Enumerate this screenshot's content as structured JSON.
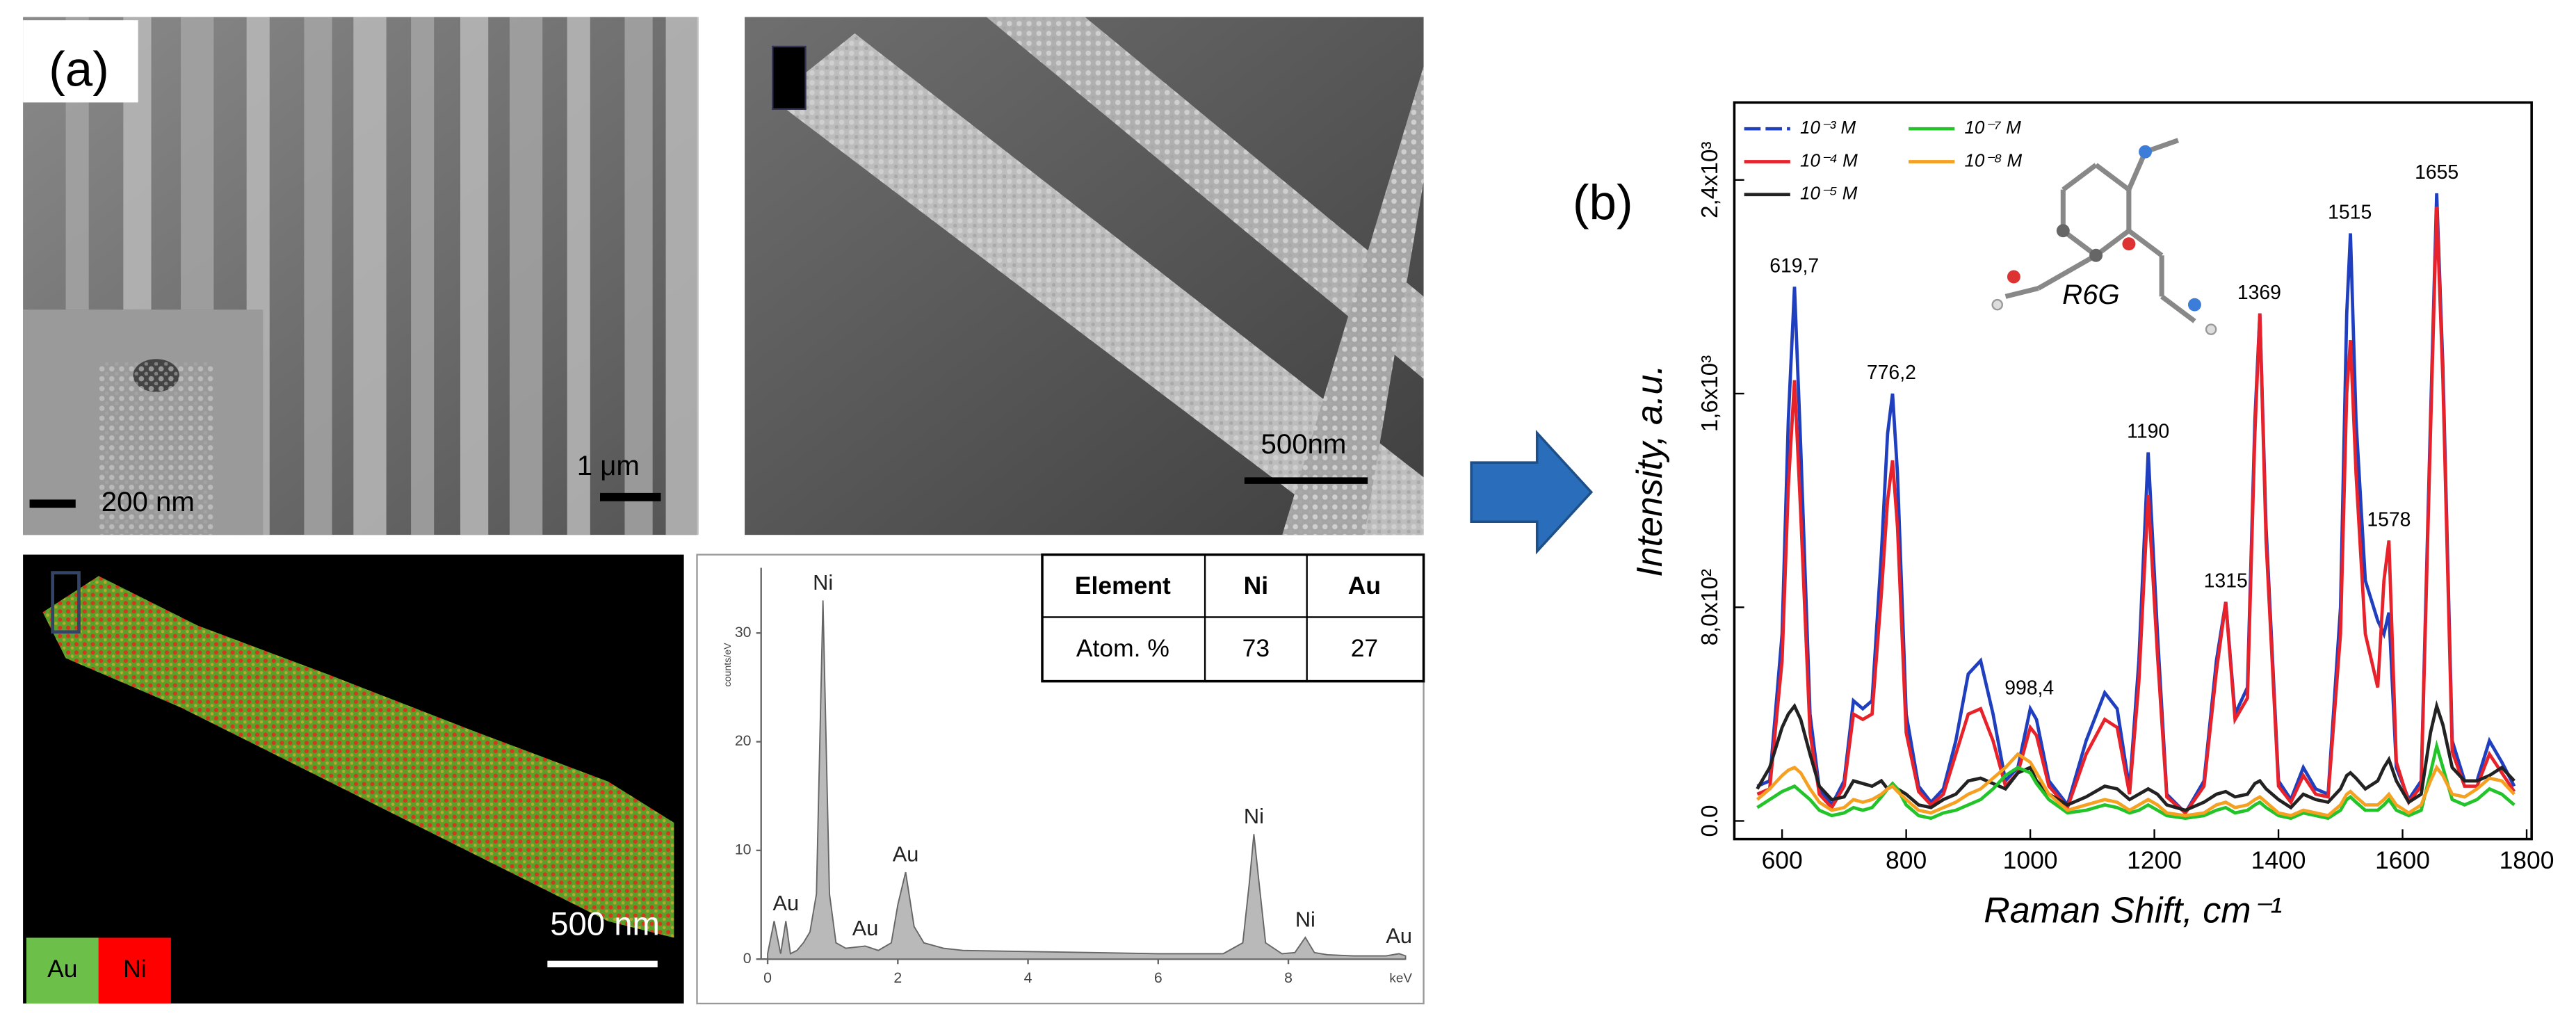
{
  "panel_a": {
    "label": "(a)",
    "sem_scale_bars": [
      "1 μm",
      "200 nm",
      "500nm"
    ],
    "map_scale_bar": "500 nm",
    "map_legend": [
      "Au",
      "Ni"
    ]
  },
  "table": {
    "header": [
      "Element",
      "Ni",
      "Au"
    ],
    "rows": [
      [
        "Atom. %",
        73,
        27
      ]
    ]
  },
  "panel_b": {
    "label": "(b)",
    "molecule": "R6G"
  },
  "chart_data": [
    {
      "type": "area",
      "xlabel": "keV",
      "ylabel": "counts/eV",
      "x": [
        0,
        0.1,
        0.2,
        0.28,
        0.35,
        0.45,
        0.55,
        0.65,
        0.75,
        0.85,
        0.95,
        1.05,
        1.2,
        1.5,
        1.7,
        1.9,
        2.0,
        2.12,
        2.25,
        2.4,
        2.7,
        3,
        4,
        5,
        6,
        7,
        7.3,
        7.4,
        7.47,
        7.55,
        7.65,
        7.9,
        8.1,
        8.26,
        8.4,
        8.6,
        9,
        9.5,
        9.7,
        9.8
      ],
      "values": [
        0.5,
        3.5,
        0.5,
        3.5,
        0.5,
        0.8,
        1.5,
        2.5,
        6,
        33,
        6,
        1.5,
        1,
        1.2,
        0.8,
        1.5,
        5,
        8,
        3,
        1.5,
        1,
        0.8,
        0.7,
        0.6,
        0.5,
        0.5,
        1.5,
        7,
        11.5,
        7,
        1.5,
        0.5,
        0.6,
        2,
        0.6,
        0.4,
        0.3,
        0.3,
        0.5,
        0.3
      ],
      "color": "#b9b9b9",
      "xlim": [
        -0.1,
        9.8
      ],
      "ylim": [
        0,
        36
      ],
      "xticks": [
        0,
        2,
        4,
        6,
        8
      ],
      "yticks": [
        0,
        10,
        20,
        30
      ],
      "annotations": [
        {
          "x": 0.85,
          "y": 33,
          "text": "Ni"
        },
        {
          "x": 0.28,
          "y": 3.5,
          "text": "Au"
        },
        {
          "x": 1.5,
          "y": 1.2,
          "text": "Au"
        },
        {
          "x": 2.12,
          "y": 8,
          "text": "Au"
        },
        {
          "x": 7.47,
          "y": 11.5,
          "text": "Ni"
        },
        {
          "x": 8.26,
          "y": 2,
          "text": "Ni"
        },
        {
          "x": 9.7,
          "y": 0.5,
          "text": "Au"
        }
      ]
    },
    {
      "type": "line",
      "xlabel": "Raman Shift, cm⁻¹",
      "ylabel": "Intensity, a.u.",
      "legend": "upper left",
      "x": [
        560,
        580,
        600,
        610,
        620,
        630,
        645,
        660,
        680,
        700,
        715,
        730,
        745,
        760,
        770,
        778,
        786,
        800,
        820,
        840,
        860,
        880,
        900,
        920,
        940,
        960,
        980,
        1000,
        1010,
        1030,
        1060,
        1090,
        1120,
        1140,
        1160,
        1175,
        1190,
        1205,
        1220,
        1250,
        1280,
        1300,
        1315,
        1330,
        1350,
        1362,
        1370,
        1380,
        1400,
        1420,
        1440,
        1460,
        1480,
        1500,
        1510,
        1516,
        1525,
        1540,
        1560,
        1570,
        1578,
        1590,
        1610,
        1630,
        1645,
        1655,
        1665,
        1680,
        1700,
        1720,
        1740,
        1760,
        1780
      ],
      "series": [
        {
          "name": "10⁻³ M",
          "color": "#1f3fbf",
          "values": [
            130,
            150,
            700,
            1500,
            2000,
            1400,
            400,
            120,
            60,
            150,
            450,
            420,
            450,
            1000,
            1450,
            1600,
            1300,
            400,
            130,
            70,
            120,
            300,
            550,
            600,
            400,
            150,
            200,
            420,
            380,
            150,
            60,
            300,
            480,
            420,
            120,
            600,
            1380,
            700,
            100,
            30,
            150,
            600,
            820,
            400,
            500,
            1500,
            1900,
            1100,
            150,
            80,
            200,
            120,
            100,
            800,
            1900,
            2200,
            1500,
            900,
            750,
            700,
            780,
            200,
            80,
            150,
            1500,
            2350,
            1700,
            300,
            150,
            150,
            300,
            220,
            130
          ]
        },
        {
          "name": "10⁻⁴ M",
          "color": "#e8222a",
          "values": [
            100,
            120,
            600,
            1250,
            1650,
            1150,
            330,
            100,
            50,
            130,
            400,
            380,
            400,
            850,
            1200,
            1350,
            1100,
            330,
            110,
            60,
            100,
            250,
            400,
            420,
            300,
            130,
            180,
            350,
            320,
            130,
            50,
            250,
            380,
            350,
            100,
            520,
            1220,
            620,
            90,
            30,
            130,
            560,
            820,
            380,
            460,
            1450,
            1900,
            1050,
            130,
            70,
            170,
            100,
            90,
            700,
            1600,
            1800,
            1300,
            700,
            500,
            900,
            1050,
            220,
            70,
            130,
            1450,
            2300,
            1650,
            260,
            130,
            130,
            250,
            180,
            110
          ]
        },
        {
          "name": "10⁻⁵ M",
          "color": "#222222",
          "values": [
            120,
            200,
            350,
            400,
            430,
            380,
            250,
            130,
            80,
            90,
            150,
            140,
            130,
            150,
            120,
            130,
            120,
            100,
            60,
            50,
            80,
            100,
            150,
            160,
            140,
            120,
            180,
            200,
            150,
            100,
            60,
            90,
            130,
            120,
            80,
            100,
            120,
            100,
            60,
            40,
            70,
            100,
            110,
            90,
            100,
            140,
            150,
            120,
            80,
            50,
            100,
            80,
            70,
            120,
            170,
            180,
            160,
            120,
            150,
            200,
            230,
            150,
            70,
            100,
            330,
            430,
            360,
            200,
            150,
            150,
            170,
            200,
            150
          ]
        },
        {
          "name": "10⁻⁷ M",
          "color": "#22c42a",
          "values": [
            50,
            80,
            110,
            120,
            130,
            110,
            80,
            40,
            20,
            30,
            50,
            40,
            50,
            90,
            120,
            140,
            120,
            60,
            20,
            10,
            30,
            40,
            60,
            80,
            120,
            170,
            200,
            180,
            140,
            80,
            30,
            40,
            60,
            50,
            30,
            40,
            60,
            40,
            20,
            10,
            20,
            40,
            50,
            30,
            40,
            60,
            70,
            50,
            20,
            10,
            30,
            20,
            10,
            40,
            80,
            90,
            70,
            40,
            40,
            60,
            80,
            40,
            20,
            40,
            180,
            280,
            200,
            80,
            60,
            80,
            120,
            100,
            60
          ]
        },
        {
          "name": "10⁻⁸ M",
          "color": "#f5a020",
          "values": [
            80,
            120,
            170,
            190,
            200,
            180,
            120,
            70,
            40,
            50,
            80,
            70,
            80,
            100,
            120,
            130,
            110,
            80,
            40,
            30,
            50,
            70,
            100,
            120,
            160,
            200,
            250,
            220,
            180,
            100,
            40,
            60,
            80,
            70,
            40,
            60,
            80,
            60,
            30,
            20,
            30,
            60,
            70,
            50,
            60,
            80,
            90,
            70,
            30,
            20,
            40,
            30,
            20,
            60,
            100,
            110,
            90,
            60,
            60,
            80,
            100,
            60,
            30,
            60,
            150,
            200,
            170,
            100,
            90,
            120,
            160,
            150,
            100
          ]
        }
      ],
      "xlim": [
        523,
        1808
      ],
      "ylim": [
        -68,
        2690
      ],
      "xticks": [
        600,
        800,
        1000,
        1200,
        1400,
        1600,
        1800
      ],
      "yticks": [
        {
          "value": 0,
          "label": "0.0"
        },
        {
          "value": 800,
          "label": "8,0x10²"
        },
        {
          "value": 1600,
          "label": "1,6x10³"
        },
        {
          "value": 2400,
          "label": "2,4x10³"
        }
      ],
      "annotations": [
        {
          "x": 619.7,
          "y": 2000,
          "text": "619,7"
        },
        {
          "x": 776.2,
          "y": 1600,
          "text": "776,2"
        },
        {
          "x": 998.4,
          "y": 420,
          "text": "998,4"
        },
        {
          "x": 1190,
          "y": 1380,
          "text": "1190"
        },
        {
          "x": 1315,
          "y": 820,
          "text": "1315"
        },
        {
          "x": 1369,
          "y": 1900,
          "text": "1369"
        },
        {
          "x": 1515,
          "y": 2200,
          "text": "1515"
        },
        {
          "x": 1578,
          "y": 1050,
          "text": "1578"
        },
        {
          "x": 1655,
          "y": 2350,
          "text": "1655"
        }
      ]
    }
  ]
}
